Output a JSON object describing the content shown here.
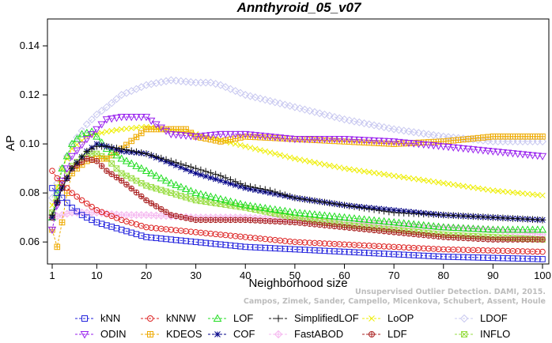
{
  "chart_data": {
    "type": "line",
    "title": "Annthyroid_05_v07",
    "xlabel": "Neighborhood size",
    "ylabel": "AP",
    "xlim": [
      1,
      100
    ],
    "ylim": [
      0.052,
      0.15
    ],
    "x_ticks": [
      1,
      10,
      20,
      30,
      40,
      50,
      60,
      70,
      80,
      90,
      100
    ],
    "y_ticks": [
      0.06,
      0.08,
      0.1,
      0.12,
      0.14
    ],
    "y_tick_labels": [
      "0.06",
      "0.08",
      "0.10",
      "0.12",
      "0.14"
    ],
    "grid": false,
    "legend_position": "bottom",
    "credit_lines": [
      "Campos, Zimek, Sander, Campello, Micenkova, Schubert, Assent, Houle",
      "Unsupervised Outlier Detection. DAMI, 2015."
    ],
    "series": [
      {
        "name": "kNN",
        "color": "#2222dd",
        "marker": "square",
        "x": [
          1,
          2,
          3,
          5,
          7,
          10,
          15,
          20,
          30,
          40,
          50,
          60,
          70,
          80,
          90,
          100
        ],
        "y": [
          0.082,
          0.08,
          0.078,
          0.074,
          0.071,
          0.068,
          0.065,
          0.062,
          0.06,
          0.058,
          0.057,
          0.056,
          0.055,
          0.054,
          0.0535,
          0.053
        ]
      },
      {
        "name": "kNNW",
        "color": "#dd2222",
        "marker": "circle",
        "x": [
          1,
          2,
          3,
          5,
          7,
          10,
          15,
          20,
          30,
          40,
          50,
          60,
          70,
          80,
          90,
          100
        ],
        "y": [
          0.089,
          0.086,
          0.084,
          0.08,
          0.077,
          0.073,
          0.069,
          0.066,
          0.064,
          0.062,
          0.06,
          0.059,
          0.058,
          0.057,
          0.0565,
          0.056
        ]
      },
      {
        "name": "LOF",
        "color": "#22dd22",
        "marker": "triangle",
        "x": [
          1,
          2,
          3,
          5,
          7,
          9,
          10,
          12,
          15,
          20,
          25,
          30,
          40,
          50,
          60,
          70,
          80,
          90,
          100
        ],
        "y": [
          0.07,
          0.08,
          0.09,
          0.1,
          0.104,
          0.105,
          0.103,
          0.098,
          0.094,
          0.089,
          0.084,
          0.08,
          0.075,
          0.072,
          0.07,
          0.068,
          0.066,
          0.065,
          0.065
        ]
      },
      {
        "name": "SimplifiedLOF",
        "color": "#111111",
        "marker": "plus",
        "x": [
          1,
          3,
          5,
          8,
          10,
          12,
          15,
          20,
          25,
          30,
          35,
          40,
          45,
          50,
          60,
          70,
          80,
          90,
          100
        ],
        "y": [
          0.071,
          0.082,
          0.09,
          0.097,
          0.099,
          0.099,
          0.098,
          0.096,
          0.093,
          0.09,
          0.087,
          0.083,
          0.081,
          0.078,
          0.075,
          0.072,
          0.071,
          0.07,
          0.069
        ]
      },
      {
        "name": "LoOP",
        "color": "#eeee00",
        "marker": "x",
        "x": [
          1,
          3,
          5,
          8,
          10,
          12,
          15,
          20,
          30,
          40,
          50,
          60,
          70,
          80,
          90,
          100
        ],
        "y": [
          0.075,
          0.09,
          0.098,
          0.103,
          0.104,
          0.105,
          0.106,
          0.107,
          0.104,
          0.099,
          0.094,
          0.09,
          0.087,
          0.084,
          0.081,
          0.079
        ]
      },
      {
        "name": "LDOF",
        "color": "#c8c8f0",
        "marker": "diamond",
        "x": [
          1,
          3,
          5,
          8,
          10,
          12,
          15,
          20,
          25,
          30,
          33,
          35,
          40,
          50,
          60,
          70,
          80,
          90,
          100
        ],
        "y": [
          0.078,
          0.09,
          0.1,
          0.108,
          0.112,
          0.115,
          0.12,
          0.124,
          0.126,
          0.125,
          0.125,
          0.124,
          0.12,
          0.115,
          0.11,
          0.106,
          0.103,
          0.101,
          0.101
        ]
      },
      {
        "name": "ODIN",
        "color": "#9922ee",
        "marker": "triangle-down",
        "x": [
          1,
          3,
          5,
          8,
          10,
          12,
          15,
          18,
          20,
          22,
          25,
          30,
          35,
          40,
          50,
          60,
          70,
          80,
          90,
          100
        ],
        "y": [
          0.065,
          0.085,
          0.095,
          0.102,
          0.106,
          0.11,
          0.111,
          0.111,
          0.111,
          0.108,
          0.104,
          0.103,
          0.104,
          0.104,
          0.102,
          0.102,
          0.101,
          0.099,
          0.097,
          0.095
        ]
      },
      {
        "name": "KDEOS",
        "color": "#eeaa00",
        "marker": "boxplus",
        "x": [
          1,
          2,
          3,
          4,
          5,
          6,
          8,
          10,
          12,
          15,
          20,
          25,
          28,
          30,
          35,
          40,
          50,
          60,
          70,
          80,
          90,
          100
        ],
        "y": [
          0.065,
          0.058,
          0.068,
          0.08,
          0.088,
          0.09,
          0.093,
          0.094,
          0.094,
          0.098,
          0.106,
          0.106,
          0.106,
          0.103,
          0.101,
          0.103,
          0.102,
          0.101,
          0.1,
          0.101,
          0.103,
          0.103
        ]
      },
      {
        "name": "COF",
        "color": "#000088",
        "marker": "star",
        "x": [
          1,
          3,
          5,
          8,
          10,
          12,
          15,
          20,
          25,
          30,
          35,
          40,
          45,
          50,
          60,
          70,
          80,
          90,
          100
        ],
        "y": [
          0.07,
          0.082,
          0.09,
          0.097,
          0.1,
          0.099,
          0.097,
          0.096,
          0.092,
          0.088,
          0.085,
          0.082,
          0.08,
          0.078,
          0.075,
          0.073,
          0.071,
          0.07,
          0.069
        ]
      },
      {
        "name": "FastABOD",
        "color": "#f5b8f0",
        "marker": "diamond-plus",
        "x": [
          1,
          5,
          10,
          15,
          20,
          30,
          40,
          50,
          60,
          70,
          80,
          90,
          100
        ],
        "y": [
          0.07,
          0.072,
          0.072,
          0.071,
          0.071,
          0.07,
          0.07,
          0.069,
          0.068,
          0.067,
          0.066,
          0.065,
          0.063
        ]
      },
      {
        "name": "LDF",
        "color": "#aa2222",
        "marker": "circle-plus",
        "x": [
          1,
          3,
          5,
          8,
          10,
          12,
          15,
          20,
          25,
          30,
          40,
          50,
          60,
          70,
          80,
          90,
          100
        ],
        "y": [
          0.07,
          0.082,
          0.09,
          0.094,
          0.093,
          0.089,
          0.085,
          0.077,
          0.071,
          0.069,
          0.069,
          0.068,
          0.066,
          0.064,
          0.062,
          0.061,
          0.061
        ]
      },
      {
        "name": "INFLO",
        "color": "#99dd44",
        "marker": "hourglass",
        "x": [
          1,
          3,
          5,
          8,
          10,
          12,
          15,
          20,
          25,
          30,
          40,
          50,
          60,
          70,
          80,
          90,
          100
        ],
        "y": [
          0.072,
          0.084,
          0.091,
          0.096,
          0.096,
          0.094,
          0.088,
          0.083,
          0.08,
          0.077,
          0.074,
          0.07,
          0.067,
          0.065,
          0.063,
          0.062,
          0.061
        ]
      }
    ]
  }
}
